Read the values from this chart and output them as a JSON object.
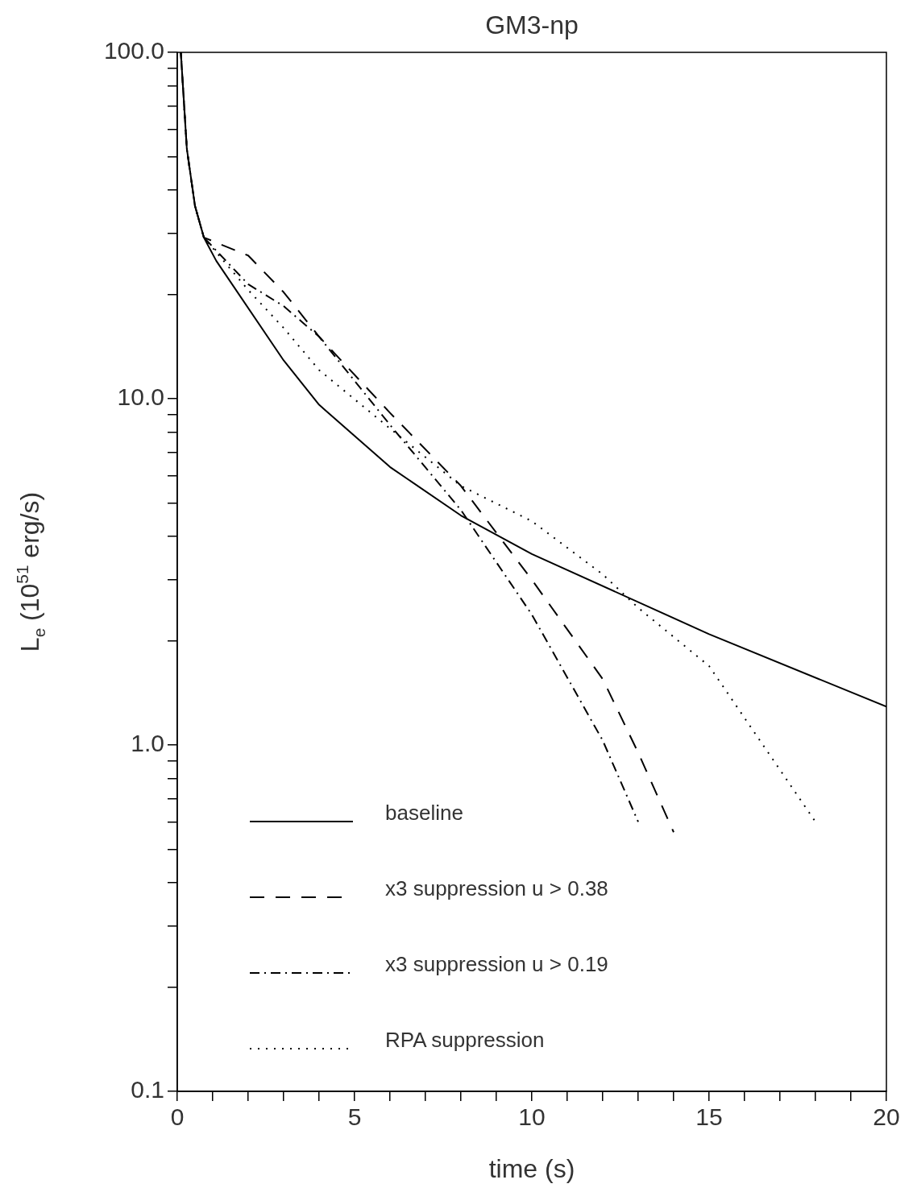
{
  "chart_data": {
    "type": "line",
    "title": "GM3-np",
    "xlabel": "time (s)",
    "ylabel": "L$_{e}$ (10$^{51}$ erg/s)",
    "log": "y",
    "legend": "bottom left",
    "marker": "none",
    "xlim": [
      0,
      20
    ],
    "xticks": [
      0,
      {
        "value": 1,
        "label": null
      },
      {
        "value": 2,
        "label": null
      },
      {
        "value": 3,
        "label": null
      },
      {
        "value": 4,
        "label": null
      },
      5,
      {
        "value": 6,
        "label": null
      },
      {
        "value": 7,
        "label": null
      },
      {
        "value": 8,
        "label": null
      },
      {
        "value": 9,
        "label": null
      },
      10,
      {
        "value": 11,
        "label": null
      },
      {
        "value": 12,
        "label": null
      },
      {
        "value": 13,
        "label": null
      },
      {
        "value": 14,
        "label": null
      },
      15,
      {
        "value": 16,
        "label": null
      },
      {
        "value": 17,
        "label": null
      },
      {
        "value": 18,
        "label": null
      },
      {
        "value": 19,
        "label": null
      },
      20
    ],
    "ylim": [
      0.1,
      100
    ],
    "yticks": [
      {
        "value": 0.1,
        "label": "0.1"
      },
      {
        "value": 0.2,
        "label": null
      },
      {
        "value": 0.3,
        "label": null
      },
      {
        "value": 0.4,
        "label": null
      },
      {
        "value": 0.5,
        "label": null
      },
      {
        "value": 0.6,
        "label": null
      },
      {
        "value": 0.7,
        "label": null
      },
      {
        "value": 0.8,
        "label": null
      },
      {
        "value": 0.9,
        "label": null
      },
      {
        "value": 1,
        "label": "1.0"
      },
      {
        "value": 2,
        "label": null
      },
      {
        "value": 3,
        "label": null
      },
      {
        "value": 4,
        "label": null
      },
      {
        "value": 5,
        "label": null
      },
      {
        "value": 6,
        "label": null
      },
      {
        "value": 7,
        "label": null
      },
      {
        "value": 8,
        "label": null
      },
      {
        "value": 9,
        "label": null
      },
      {
        "value": 10,
        "label": "10.0"
      },
      {
        "value": 20,
        "label": null
      },
      {
        "value": 30,
        "label": null
      },
      {
        "value": 40,
        "label": null
      },
      {
        "value": 50,
        "label": null
      },
      {
        "value": 60,
        "label": null
      },
      {
        "value": 70,
        "label": null
      },
      {
        "value": 80,
        "label": null
      },
      {
        "value": 90,
        "label": null
      },
      {
        "value": 100,
        "label": "100.0"
      }
    ],
    "series": [
      {
        "name": "baseline",
        "color": "#000000",
        "line_style": "solid",
        "x": [
          0.1,
          0.27,
          0.5,
          0.75,
          1.1,
          3,
          4,
          6,
          8,
          10,
          15,
          20
        ],
        "values": [
          100,
          52.6,
          36,
          29.2,
          25,
          12.9,
          9.6,
          6.35,
          4.6,
          3.56,
          2.09,
          1.29
        ]
      },
      {
        "name": "x3 suppression u > 0.38",
        "color": "#000000",
        "line_style": "dashed",
        "x": [
          0.1,
          0.27,
          0.5,
          0.75,
          2,
          3,
          4,
          6,
          8,
          10,
          12,
          13,
          14
        ],
        "values": [
          100,
          52.6,
          36,
          29.2,
          25.9,
          20.3,
          15.1,
          9.1,
          5.6,
          3.0,
          1.55,
          0.95,
          0.56
        ]
      },
      {
        "name": "x3 suppression u > 0.19",
        "color": "#000000",
        "line_style": "dashdot",
        "x": [
          0.1,
          0.27,
          0.5,
          0.75,
          2,
          3,
          4,
          6,
          8,
          10,
          12,
          13
        ],
        "values": [
          100,
          52.6,
          36,
          29.2,
          21.4,
          18.5,
          15.1,
          8.4,
          4.77,
          2.38,
          1.03,
          0.6
        ]
      },
      {
        "name": "RPA suppression",
        "color": "#000000",
        "line_style": "dotted",
        "x": [
          0.1,
          0.27,
          0.5,
          0.75,
          2,
          3,
          4,
          6,
          8,
          10,
          12,
          13,
          15,
          18
        ],
        "values": [
          100,
          52.6,
          36,
          29.2,
          20.6,
          16.0,
          12.1,
          8.2,
          5.6,
          4.43,
          3.11,
          2.49,
          1.69,
          0.6
        ]
      }
    ]
  }
}
